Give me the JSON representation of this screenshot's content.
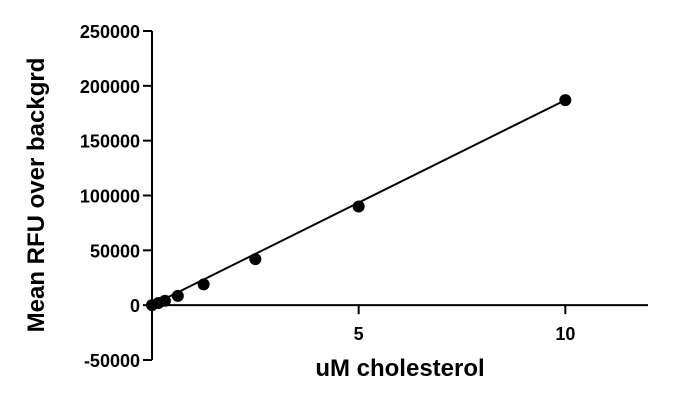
{
  "chart_data": {
    "type": "scatter",
    "title": "",
    "xlabel": "uM cholesterol",
    "ylabel": "Mean RFU over backgrd",
    "xlim": [
      0,
      12
    ],
    "ylim": [
      -50000,
      250000
    ],
    "x_ticks": [
      {
        "value": 5,
        "label": "5"
      },
      {
        "value": 10,
        "label": "10"
      }
    ],
    "y_ticks": [
      {
        "value": 250000,
        "label": "250000"
      },
      {
        "value": 200000,
        "label": "200000"
      },
      {
        "value": 150000,
        "label": "150000"
      },
      {
        "value": 100000,
        "label": "100000"
      },
      {
        "value": 50000,
        "label": "50000"
      },
      {
        "value": 0,
        "label": "0"
      },
      {
        "value": -50000,
        "label": "-50000"
      }
    ],
    "series": [
      {
        "points": [
          {
            "x": 0,
            "y": 0
          },
          {
            "x": 0.156,
            "y": 2000
          },
          {
            "x": 0.3125,
            "y": 4000
          },
          {
            "x": 0.625,
            "y": 8500
          },
          {
            "x": 1.25,
            "y": 19000
          },
          {
            "x": 2.5,
            "y": 42000
          },
          {
            "x": 5,
            "y": 90000
          },
          {
            "x": 10,
            "y": 187000
          }
        ],
        "fit_line": {
          "x": [
            0,
            10
          ],
          "y": [
            0,
            187000
          ]
        },
        "color": "#000000"
      }
    ],
    "grid": false,
    "legend": "none"
  }
}
